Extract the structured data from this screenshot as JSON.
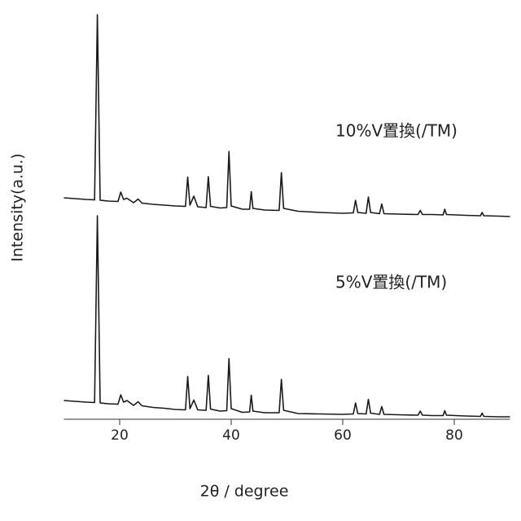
{
  "chart_data": {
    "type": "line",
    "x_label": "2θ / degree",
    "y_label": "Intensity(a.u.)",
    "x": [
      10,
      12,
      14,
      15.5,
      16,
      16.5,
      18,
      19.7,
      20.2,
      20.7,
      21.3,
      22.5,
      23.3,
      24,
      26,
      28,
      30,
      31.8,
      32.2,
      32.6,
      33.3,
      34,
      35.5,
      35.9,
      36.3,
      38,
      39.2,
      39.6,
      40,
      42,
      43.3,
      43.6,
      43.9,
      46,
      48.6,
      49,
      49.4,
      52,
      56,
      60,
      61.9,
      62.3,
      62.7,
      64.2,
      64.6,
      65,
      66.6,
      67,
      67.4,
      70,
      73.5,
      73.9,
      74.3,
      76,
      78,
      78.3,
      78.6,
      82,
      84.7,
      85,
      85.3,
      88,
      90
    ],
    "series": [
      {
        "name": "10%V置換(/TM)",
        "color": "#1a1a1a",
        "values": [
          54.4,
          54.2,
          54.0,
          53.9,
          99.4,
          53.8,
          53.6,
          53.5,
          55.8,
          54.0,
          54.3,
          53.2,
          54.1,
          53.1,
          52.8,
          52.6,
          52.4,
          52.3,
          59.5,
          52.6,
          54.8,
          52.2,
          52.0,
          59.6,
          52.3,
          51.9,
          52.0,
          65.8,
          52.4,
          51.6,
          51.6,
          55.9,
          51.8,
          51.4,
          51.3,
          60.6,
          51.8,
          51.1,
          50.8,
          50.6,
          50.7,
          53.8,
          50.8,
          50.6,
          54.6,
          50.8,
          50.5,
          52.9,
          50.5,
          50.4,
          50.3,
          51.3,
          50.3,
          50.3,
          50.2,
          51.6,
          50.3,
          50.1,
          50.0,
          50.8,
          50.0,
          49.9,
          49.8
        ]
      },
      {
        "name": "5%V置換(/TM)",
        "color": "#1a1a1a",
        "values": [
          4.6,
          4.4,
          4.2,
          4.1,
          50.0,
          4.0,
          3.8,
          3.7,
          6.0,
          4.2,
          4.6,
          3.4,
          4.3,
          3.3,
          2.9,
          2.7,
          2.4,
          2.3,
          10.5,
          2.6,
          4.7,
          2.3,
          2.2,
          10.8,
          2.5,
          2.0,
          2.1,
          14.9,
          2.6,
          1.7,
          1.8,
          5.9,
          2.0,
          1.6,
          1.6,
          9.8,
          2.2,
          1.4,
          1.3,
          1.2,
          1.3,
          4.0,
          1.4,
          1.3,
          4.9,
          1.5,
          1.2,
          3.1,
          1.2,
          1.1,
          1.0,
          2.0,
          1.0,
          0.9,
          0.9,
          2.1,
          1.0,
          0.8,
          0.7,
          1.5,
          0.7,
          0.6,
          0.6
        ]
      }
    ],
    "xlim": [
      10,
      90
    ],
    "xticks": [
      20,
      40,
      60,
      80
    ],
    "ylim": [
      0,
      100
    ]
  }
}
